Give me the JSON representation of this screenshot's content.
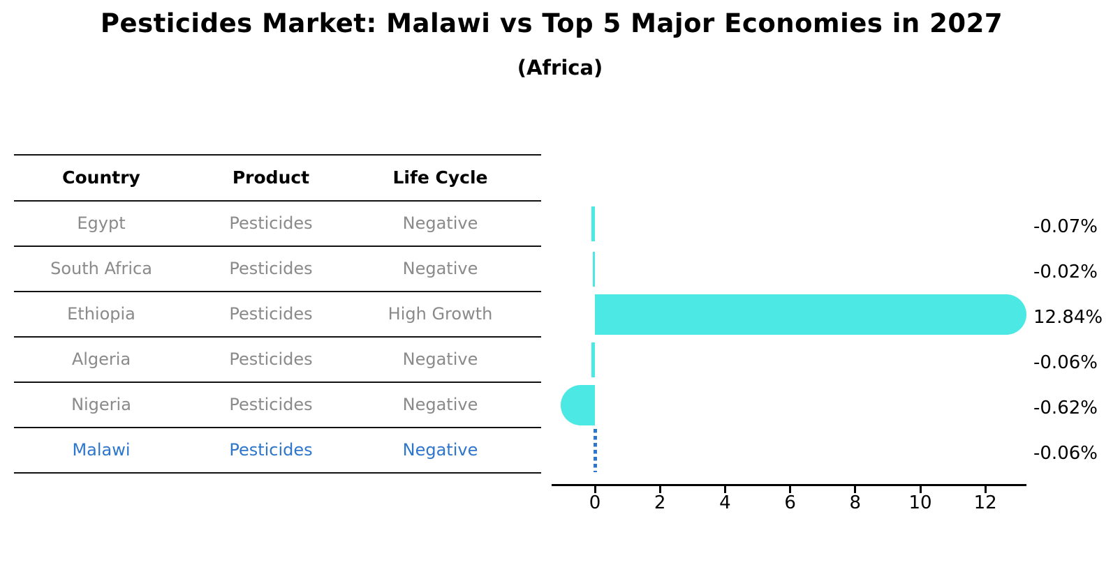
{
  "title": "Pesticides Market: Malawi vs Top 5 Major Economies in 2027",
  "subtitle": "(Africa)",
  "table": {
    "headers": [
      "Country",
      "Product",
      "Life Cycle"
    ],
    "rows": [
      {
        "country": "Egypt",
        "product": "Pesticides",
        "life_cycle": "Negative",
        "highlight": false
      },
      {
        "country": "South Africa",
        "product": "Pesticides",
        "life_cycle": "Negative",
        "highlight": false
      },
      {
        "country": "Ethiopia",
        "product": "Pesticides",
        "life_cycle": "High Growth",
        "highlight": false
      },
      {
        "country": "Algeria",
        "product": "Pesticides",
        "life_cycle": "Negative",
        "highlight": false
      },
      {
        "country": "Nigeria",
        "product": "Pesticides",
        "life_cycle": "Negative",
        "highlight": false
      },
      {
        "country": "Malawi",
        "product": "Pesticides",
        "life_cycle": "Negative",
        "highlight": true
      }
    ]
  },
  "chart_data": {
    "type": "bar",
    "orientation": "horizontal",
    "title": "Pesticides Market: Malawi vs Top 5 Major Economies in 2027",
    "subtitle": "(Africa)",
    "categories": [
      "Egypt",
      "South Africa",
      "Ethiopia",
      "Algeria",
      "Nigeria",
      "Malawi"
    ],
    "values": [
      -0.07,
      -0.02,
      12.84,
      -0.06,
      -0.62,
      -0.06
    ],
    "value_labels": [
      "-0.07%",
      "-0.02%",
      "12.84%",
      "-0.06%",
      "-0.62%",
      "-0.06%"
    ],
    "unit": "percent-growth",
    "x_ticks": [
      0,
      2,
      4,
      6,
      8,
      10,
      12
    ],
    "xlim": [
      -1.35,
      13.25
    ],
    "grid": false,
    "legend": "none",
    "highlight_index": 5,
    "highlight_marker": "dashed-vertical-line-at-zero"
  },
  "colors": {
    "bar": "#4ce8e4",
    "highlight": "#2e76cc",
    "row_text": "#8a8a8a",
    "heading_text": "#000000",
    "axis": "#000000"
  }
}
